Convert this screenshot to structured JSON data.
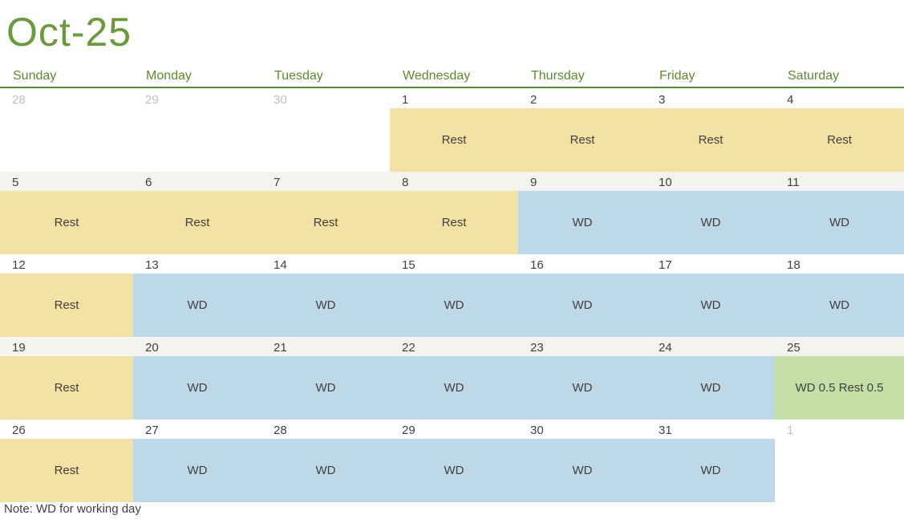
{
  "title": "Oct-25",
  "weekdays": [
    "Sunday",
    "Monday",
    "Tuesday",
    "Wednesday",
    "Thursday",
    "Friday",
    "Saturday"
  ],
  "legend": {
    "rest": "Rest",
    "wd": "WD",
    "mix": "WD 0.5 Rest 0.5"
  },
  "weeks": [
    [
      {
        "num": "28",
        "muted": true,
        "label": "",
        "kind": "none"
      },
      {
        "num": "29",
        "muted": true,
        "label": "",
        "kind": "none"
      },
      {
        "num": "30",
        "muted": true,
        "label": "",
        "kind": "none"
      },
      {
        "num": "1",
        "muted": false,
        "label": "Rest",
        "kind": "rest"
      },
      {
        "num": "2",
        "muted": false,
        "label": "Rest",
        "kind": "rest"
      },
      {
        "num": "3",
        "muted": false,
        "label": "Rest",
        "kind": "rest"
      },
      {
        "num": "4",
        "muted": false,
        "label": "Rest",
        "kind": "rest"
      }
    ],
    [
      {
        "num": "5",
        "muted": false,
        "label": "Rest",
        "kind": "rest"
      },
      {
        "num": "6",
        "muted": false,
        "label": "Rest",
        "kind": "rest"
      },
      {
        "num": "7",
        "muted": false,
        "label": "Rest",
        "kind": "rest"
      },
      {
        "num": "8",
        "muted": false,
        "label": "Rest",
        "kind": "rest"
      },
      {
        "num": "9",
        "muted": false,
        "label": "WD",
        "kind": "wd"
      },
      {
        "num": "10",
        "muted": false,
        "label": "WD",
        "kind": "wd"
      },
      {
        "num": "11",
        "muted": false,
        "label": "WD",
        "kind": "wd"
      }
    ],
    [
      {
        "num": "12",
        "muted": false,
        "label": "Rest",
        "kind": "rest"
      },
      {
        "num": "13",
        "muted": false,
        "label": "WD",
        "kind": "wd"
      },
      {
        "num": "14",
        "muted": false,
        "label": "WD",
        "kind": "wd"
      },
      {
        "num": "15",
        "muted": false,
        "label": "WD",
        "kind": "wd"
      },
      {
        "num": "16",
        "muted": false,
        "label": "WD",
        "kind": "wd"
      },
      {
        "num": "17",
        "muted": false,
        "label": "WD",
        "kind": "wd"
      },
      {
        "num": "18",
        "muted": false,
        "label": "WD",
        "kind": "wd"
      }
    ],
    [
      {
        "num": "19",
        "muted": false,
        "label": "Rest",
        "kind": "rest"
      },
      {
        "num": "20",
        "muted": false,
        "label": "WD",
        "kind": "wd"
      },
      {
        "num": "21",
        "muted": false,
        "label": "WD",
        "kind": "wd"
      },
      {
        "num": "22",
        "muted": false,
        "label": "WD",
        "kind": "wd"
      },
      {
        "num": "23",
        "muted": false,
        "label": "WD",
        "kind": "wd"
      },
      {
        "num": "24",
        "muted": false,
        "label": "WD",
        "kind": "wd"
      },
      {
        "num": "25",
        "muted": false,
        "label": "WD 0.5 Rest 0.5",
        "kind": "mix"
      }
    ],
    [
      {
        "num": "26",
        "muted": false,
        "label": "Rest",
        "kind": "rest"
      },
      {
        "num": "27",
        "muted": false,
        "label": "WD",
        "kind": "wd"
      },
      {
        "num": "28",
        "muted": false,
        "label": "WD",
        "kind": "wd"
      },
      {
        "num": "29",
        "muted": false,
        "label": "WD",
        "kind": "wd"
      },
      {
        "num": "30",
        "muted": false,
        "label": "WD",
        "kind": "wd"
      },
      {
        "num": "31",
        "muted": false,
        "label": "WD",
        "kind": "wd"
      },
      {
        "num": "1",
        "muted": true,
        "label": "",
        "kind": "none"
      }
    ]
  ],
  "colors": {
    "title": "#6b9a3a",
    "rest": "#f4e1a4",
    "wd": "#bdd8e6",
    "mix": "#c4dfa5",
    "rule": "#5e8a2f"
  },
  "note": "Note: WD for working day"
}
